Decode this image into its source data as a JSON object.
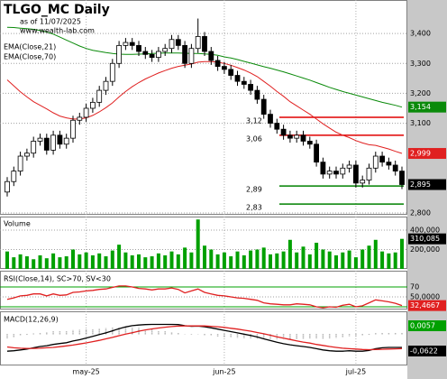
{
  "chart_data": [
    {
      "type": "candlestick",
      "title": "TLGO_MC Daily",
      "subtitle": "as of 11/07/2025",
      "source": "www.wealth-lab.com",
      "open": [
        2870,
        2905,
        2940,
        2990,
        3000,
        3040,
        3050,
        3010,
        3060,
        3030,
        3050,
        3110,
        3120,
        3150,
        3170,
        3210,
        3240,
        3300,
        3360,
        3370,
        3360,
        3340,
        3330,
        3320,
        3340,
        3350,
        3380,
        3360,
        3300,
        3350,
        3390,
        3340,
        3310,
        3290,
        3280,
        3260,
        3240,
        3230,
        3210,
        3180,
        3130,
        3100,
        3080,
        3060,
        3050,
        3060,
        3040,
        3030,
        2970,
        2930,
        2940,
        2930,
        2950,
        2960,
        2900,
        2910,
        2950,
        2990,
        2970,
        2960,
        2940
      ],
      "high": [
        2920,
        2955,
        3005,
        3015,
        3055,
        3065,
        3065,
        3075,
        3075,
        3065,
        3125,
        3135,
        3165,
        3185,
        3225,
        3255,
        3315,
        3375,
        3385,
        3385,
        3375,
        3355,
        3345,
        3355,
        3365,
        3395,
        3395,
        3375,
        3365,
        3450,
        3405,
        3355,
        3325,
        3305,
        3295,
        3275,
        3255,
        3245,
        3225,
        3195,
        3145,
        3115,
        3095,
        3075,
        3075,
        3075,
        3055,
        3045,
        2985,
        2955,
        2955,
        2965,
        2975,
        2975,
        2925,
        2965,
        3005,
        3005,
        2985,
        2975,
        2955
      ],
      "low": [
        2855,
        2890,
        2925,
        2975,
        2985,
        3025,
        2995,
        2995,
        3015,
        3015,
        3035,
        3095,
        3105,
        3135,
        3155,
        3195,
        3225,
        3285,
        3345,
        3345,
        3325,
        3315,
        3305,
        3305,
        3325,
        3335,
        3345,
        3285,
        3285,
        3335,
        3325,
        3295,
        3275,
        3265,
        3245,
        3225,
        3215,
        3195,
        3165,
        3115,
        3085,
        3065,
        3045,
        3035,
        3035,
        3025,
        3015,
        2955,
        2915,
        2915,
        2915,
        2915,
        2935,
        2885,
        2885,
        2895,
        2935,
        2955,
        2945,
        2925,
        2880
      ],
      "close": [
        2905,
        2940,
        2990,
        3000,
        3040,
        3050,
        3010,
        3060,
        3030,
        3050,
        3110,
        3120,
        3150,
        3170,
        3210,
        3240,
        3300,
        3360,
        3370,
        3360,
        3340,
        3330,
        3320,
        3340,
        3350,
        3380,
        3360,
        3300,
        3350,
        3390,
        3340,
        3310,
        3290,
        3280,
        3260,
        3240,
        3230,
        3210,
        3180,
        3130,
        3100,
        3080,
        3060,
        3050,
        3060,
        3040,
        3030,
        2970,
        2930,
        2940,
        2930,
        2950,
        2960,
        2900,
        2910,
        2950,
        2990,
        2970,
        2960,
        2940,
        2895
      ],
      "close_label": "2,895",
      "up_color": "#ffffff",
      "down_color": "#000000",
      "series": [
        {
          "name": "EMA(Close,21)",
          "color": "#e02020",
          "last_label": "2,999",
          "values": [
            3245,
            3225,
            3205,
            3188,
            3172,
            3160,
            3148,
            3135,
            3124,
            3118,
            3114,
            3114,
            3118,
            3126,
            3138,
            3152,
            3168,
            3188,
            3206,
            3222,
            3236,
            3248,
            3258,
            3268,
            3276,
            3284,
            3290,
            3294,
            3298,
            3304,
            3306,
            3306,
            3304,
            3300,
            3294,
            3286,
            3278,
            3268,
            3256,
            3240,
            3224,
            3206,
            3190,
            3172,
            3158,
            3144,
            3130,
            3114,
            3098,
            3084,
            3070,
            3060,
            3052,
            3042,
            3034,
            3028,
            3026,
            3020,
            3014,
            3006,
            2999
          ]
        },
        {
          "name": "EMA(Close,70)",
          "color": "#0a8a0a",
          "last_label": "3,154",
          "values": [
            3421,
            3420,
            3418,
            3416,
            3414,
            3410,
            3405,
            3398,
            3388,
            3378,
            3368,
            3358,
            3350,
            3344,
            3340,
            3336,
            3333,
            3331,
            3330,
            3330,
            3331,
            3332,
            3333,
            3334,
            3335,
            3335,
            3335,
            3334,
            3333,
            3333,
            3332,
            3330,
            3327,
            3322,
            3318,
            3313,
            3307,
            3301,
            3295,
            3289,
            3284,
            3278,
            3272,
            3265,
            3258,
            3251,
            3244,
            3236,
            3228,
            3220,
            3213,
            3206,
            3200,
            3194,
            3188,
            3182,
            3176,
            3170,
            3165,
            3160,
            3154
          ]
        }
      ],
      "levels": [
        {
          "value": 3120,
          "label": "3,12",
          "color": "#e00000"
        },
        {
          "value": 3060,
          "label": "3,06",
          "color": "#e00000"
        },
        {
          "value": 2890,
          "label": "2,89",
          "color": "#008000"
        },
        {
          "value": 2830,
          "label": "2,83",
          "color": "#008000"
        }
      ],
      "ylim": [
        2794,
        3512
      ],
      "yticks": [
        {
          "value": 3400,
          "label": "3,400"
        },
        {
          "value": 3300,
          "label": "3,300"
        },
        {
          "value": 3200,
          "label": "3,200"
        },
        {
          "value": 3100,
          "label": "3,100"
        },
        {
          "value": 2800,
          "label": "2,800"
        }
      ],
      "grid": true
    },
    {
      "type": "bar",
      "title": "Volume",
      "color": "#00a000",
      "last_label": "310,085",
      "values": [
        180000,
        120000,
        150000,
        130000,
        100000,
        140000,
        110000,
        160000,
        120000,
        130000,
        200000,
        150000,
        170000,
        140000,
        160000,
        130000,
        190000,
        250000,
        170000,
        140000,
        150000,
        120000,
        130000,
        160000,
        140000,
        180000,
        150000,
        220000,
        170000,
        510000,
        240000,
        200000,
        150000,
        170000,
        130000,
        180000,
        140000,
        190000,
        200000,
        220000,
        150000,
        160000,
        180000,
        300000,
        170000,
        230000,
        150000,
        270000,
        200000,
        180000,
        140000,
        170000,
        190000,
        120000,
        200000,
        240000,
        300000,
        180000,
        160000,
        170000,
        310085
      ],
      "ylim": [
        0,
        540000
      ],
      "yticks": [
        {
          "value": 400000,
          "label": "400,000"
        },
        {
          "value": 200000,
          "label": "200,000"
        }
      ],
      "grid": true
    },
    {
      "type": "line",
      "title": "RSI(Close,14), SC>70, SV<30",
      "series": [
        {
          "color": "#e02020",
          "last_label": "32,4667",
          "values": [
            45,
            48,
            52,
            53,
            56,
            56,
            52,
            56,
            53,
            54,
            59,
            60,
            62,
            63,
            65,
            66,
            69,
            72,
            72,
            70,
            67,
            66,
            64,
            66,
            66,
            68,
            65,
            58,
            62,
            66,
            59,
            56,
            53,
            52,
            50,
            48,
            47,
            45,
            43,
            38,
            36,
            35,
            34,
            34,
            36,
            35,
            34,
            30,
            28,
            30,
            29,
            33,
            35,
            30,
            32,
            38,
            44,
            42,
            40,
            37,
            32.4667
          ]
        }
      ],
      "thresholds": [
        70,
        30
      ],
      "threshold_color": "#00a000",
      "ylim": [
        24.5,
        102.7
      ],
      "yticks": [
        70,
        {
          "value": 50,
          "label": "50,0000"
        }
      ],
      "grid": true
    },
    {
      "type": "line",
      "title": "MACD(12,26,9)",
      "categories": [
        null,
        null,
        null,
        null,
        null,
        null,
        null,
        null,
        null,
        null,
        null,
        null,
        "may-25",
        null,
        null,
        null,
        null,
        null,
        null,
        null,
        null,
        null,
        null,
        null,
        null,
        null,
        null,
        null,
        null,
        null,
        null,
        null,
        null,
        "jun-25",
        null,
        null,
        null,
        null,
        null,
        null,
        null,
        null,
        null,
        null,
        null,
        null,
        null,
        null,
        null,
        null,
        null,
        null,
        null,
        "jul-25",
        null,
        null,
        null,
        null,
        null,
        null,
        null
      ],
      "series": [
        {
          "color": "#000000",
          "last_label": "-0,0622",
          "values": [
            -0.08,
            -0.078,
            -0.074,
            -0.07,
            -0.064,
            -0.058,
            -0.054,
            -0.048,
            -0.044,
            -0.04,
            -0.032,
            -0.026,
            -0.018,
            -0.01,
            -0.002,
            0.006,
            0.016,
            0.026,
            0.034,
            0.04,
            0.043,
            0.045,
            0.046,
            0.046,
            0.046,
            0.046,
            0.045,
            0.04,
            0.037,
            0.038,
            0.035,
            0.03,
            0.024,
            0.018,
            0.012,
            0.006,
            0.0,
            -0.006,
            -0.013,
            -0.022,
            -0.03,
            -0.038,
            -0.045,
            -0.05,
            -0.054,
            -0.058,
            -0.062,
            -0.068,
            -0.074,
            -0.078,
            -0.08,
            -0.08,
            -0.078,
            -0.08,
            -0.08,
            -0.076,
            -0.068,
            -0.064,
            -0.062,
            -0.062,
            -0.0622
          ]
        },
        {
          "color": "#e02020",
          "values": [
            -0.06,
            -0.064,
            -0.066,
            -0.067,
            -0.067,
            -0.066,
            -0.064,
            -0.062,
            -0.059,
            -0.055,
            -0.051,
            -0.046,
            -0.041,
            -0.035,
            -0.029,
            -0.022,
            -0.015,
            -0.007,
            0.0,
            0.007,
            0.014,
            0.02,
            0.025,
            0.029,
            0.033,
            0.036,
            0.038,
            0.039,
            0.039,
            0.039,
            0.039,
            0.037,
            0.035,
            0.032,
            0.028,
            0.024,
            0.019,
            0.014,
            0.008,
            0.002,
            -0.005,
            -0.012,
            -0.019,
            -0.025,
            -0.031,
            -0.037,
            -0.042,
            -0.048,
            -0.053,
            -0.058,
            -0.062,
            -0.066,
            -0.068,
            -0.07,
            -0.072,
            -0.073,
            -0.072,
            -0.071,
            -0.07,
            -0.069,
            -0.0679
          ]
        }
      ],
      "histogram": {
        "color": "#00a000",
        "last_label": "0,0057",
        "values": [
          -0.02,
          -0.014,
          -0.008,
          -0.003,
          0.003,
          0.008,
          0.01,
          0.014,
          0.015,
          0.015,
          0.019,
          0.02,
          0.023,
          0.025,
          0.027,
          0.028,
          0.031,
          0.033,
          0.034,
          0.033,
          0.029,
          0.025,
          0.021,
          0.017,
          0.013,
          0.01,
          0.007,
          0.001,
          -0.002,
          -0.001,
          -0.004,
          -0.007,
          -0.011,
          -0.014,
          -0.016,
          -0.018,
          -0.019,
          -0.02,
          -0.021,
          -0.024,
          -0.025,
          -0.026,
          -0.026,
          -0.025,
          -0.023,
          -0.021,
          -0.02,
          -0.02,
          -0.021,
          -0.02,
          -0.018,
          -0.014,
          -0.01,
          -0.01,
          -0.008,
          -0.003,
          0.004,
          0.007,
          0.008,
          0.007,
          0.0057
        ]
      },
      "ylim": [
        -0.1471,
        0.1076
      ]
    }
  ]
}
